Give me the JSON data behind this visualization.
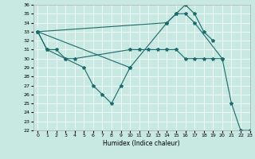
{
  "xlabel": "Humidex (Indice chaleur)",
  "bg_color": "#c8e8e2",
  "grid_color": "#ffffff",
  "line_color": "#1a6b6b",
  "xlim_min": -0.5,
  "xlim_max": 23,
  "ylim_min": 22,
  "ylim_max": 36,
  "xticks": [
    0,
    1,
    2,
    3,
    4,
    5,
    6,
    7,
    8,
    9,
    10,
    11,
    12,
    13,
    14,
    15,
    16,
    17,
    18,
    19,
    20,
    21,
    22,
    23
  ],
  "yticks": [
    22,
    23,
    24,
    25,
    26,
    27,
    28,
    29,
    30,
    31,
    32,
    33,
    34,
    35,
    36
  ],
  "series": [
    [
      [
        0,
        33
      ],
      [
        1,
        31
      ],
      [
        2,
        31
      ],
      [
        3,
        30
      ],
      [
        4,
        30
      ],
      [
        10,
        31
      ],
      [
        11,
        31
      ],
      [
        12,
        31
      ],
      [
        13,
        31
      ],
      [
        14,
        31
      ],
      [
        15,
        31
      ],
      [
        16,
        30
      ],
      [
        17,
        30
      ],
      [
        18,
        30
      ],
      [
        19,
        30
      ],
      [
        20,
        30
      ]
    ],
    [
      [
        0,
        33
      ],
      [
        1,
        31
      ],
      [
        3,
        30
      ],
      [
        5,
        29
      ],
      [
        6,
        27
      ],
      [
        7,
        26
      ],
      [
        8,
        25
      ],
      [
        9,
        27
      ],
      [
        10,
        29
      ]
    ],
    [
      [
        0,
        33
      ],
      [
        14,
        34
      ],
      [
        15,
        35
      ],
      [
        16,
        36
      ],
      [
        17,
        35
      ],
      [
        18,
        33
      ],
      [
        19,
        32
      ]
    ],
    [
      [
        0,
        33
      ],
      [
        10,
        29
      ],
      [
        14,
        34
      ],
      [
        15,
        35
      ],
      [
        16,
        35
      ],
      [
        17,
        34
      ],
      [
        20,
        30
      ],
      [
        21,
        25
      ],
      [
        22,
        22
      ],
      [
        23,
        22
      ]
    ]
  ]
}
